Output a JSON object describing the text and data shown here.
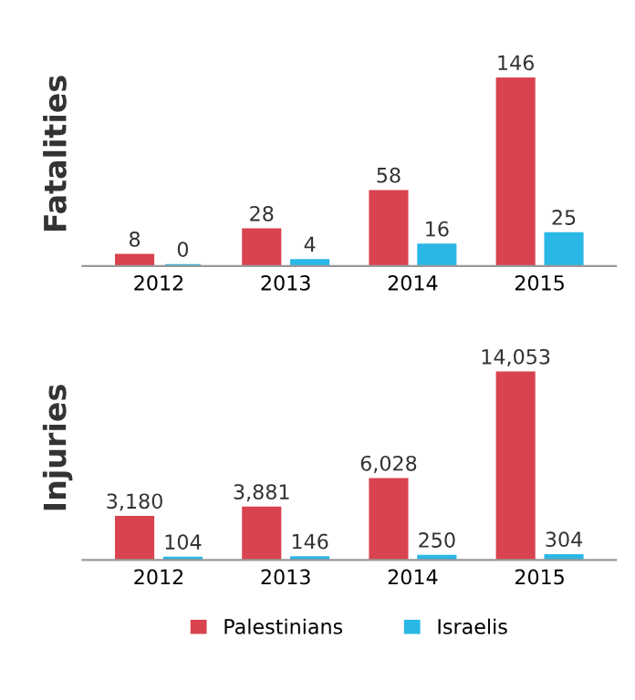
{
  "chart_data": [
    {
      "type": "bar",
      "ylabel": "Fatalities",
      "categories": [
        "2012",
        "2013",
        "2014",
        "2015"
      ],
      "series": [
        {
          "color": "#d9434f",
          "values": [
            8,
            28,
            58,
            146
          ]
        },
        {
          "color": "#2bb7e6",
          "values": [
            0,
            4,
            16,
            25
          ]
        }
      ],
      "data_labels": true,
      "tick_labels": "x"
    },
    {
      "type": "bar",
      "ylabel": "Injuries",
      "categories": [
        "2012",
        "2013",
        "2014",
        "2015"
      ],
      "series": [
        {
          "name": "Palestinians",
          "color": "#d9434f",
          "values": [
            3180,
            3881,
            6028,
            14053
          ],
          "value_labels": [
            "3,180",
            "3,881",
            "6,028",
            "14,053"
          ]
        },
        {
          "name": "Israelis",
          "color": "#2bb7e6",
          "values": [
            104,
            146,
            250,
            304
          ],
          "value_labels": [
            "104",
            "146",
            "250",
            "304"
          ]
        }
      ],
      "tick_labels": "x",
      "legend": "bottom"
    }
  ]
}
